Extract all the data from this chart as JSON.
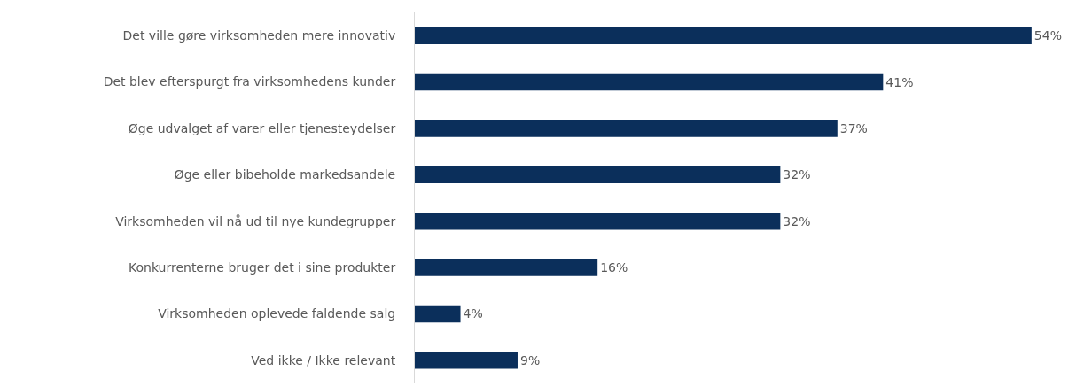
{
  "chart_data": {
    "type": "bar",
    "orientation": "horizontal",
    "categories": [
      "Det ville gøre virksomheden mere innovativ",
      "Det blev efterspurgt fra virksomhedens kunder",
      "Øge udvalget af varer eller tjenesteydelser",
      "Øge eller bibeholde markedsandele",
      "Virksomheden vil nå ud til nye kundegrupper",
      "Konkurrenterne bruger det i sine produkter",
      "Virksomheden oplevede faldende salg",
      "Ved ikke / Ikke relevant"
    ],
    "values": [
      54,
      41,
      37,
      32,
      32,
      16,
      4,
      9
    ],
    "value_labels": [
      "54%",
      "41%",
      "37%",
      "32%",
      "32%",
      "16%",
      "4%",
      "9%"
    ],
    "color": "#0b2f5b",
    "legend": false
  }
}
